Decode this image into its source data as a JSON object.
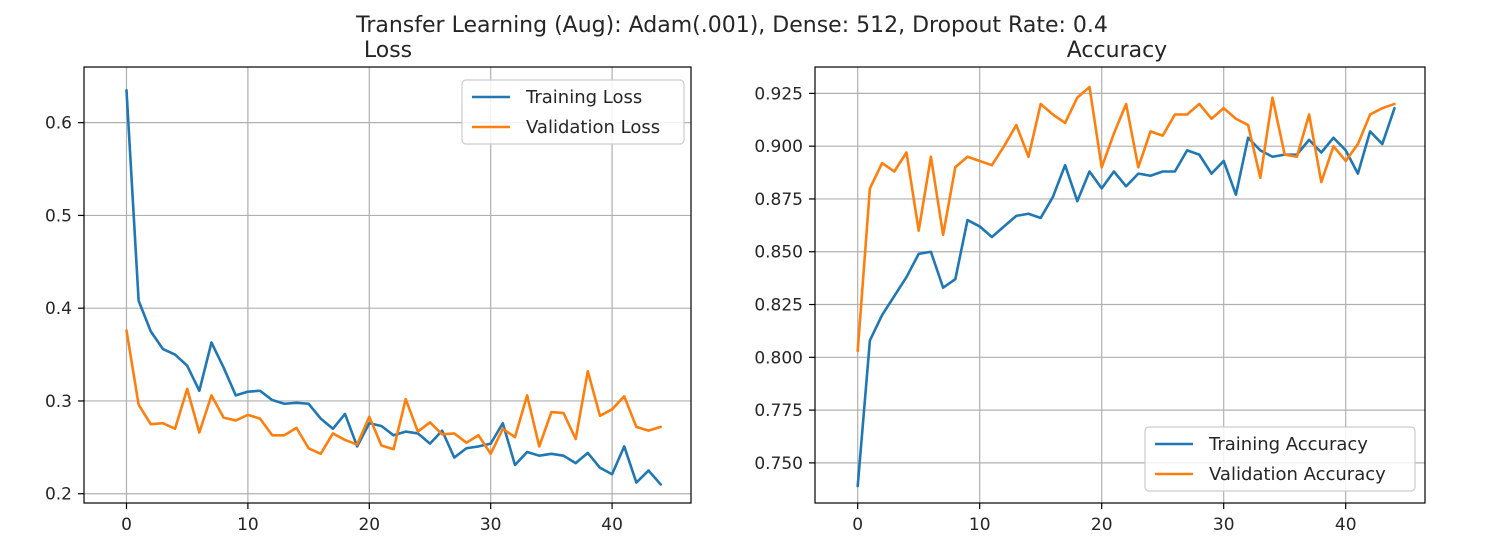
{
  "figure": {
    "suptitle": "Transfer Learning (Aug): Adam(.001), Dense: 512, Dropout Rate: 0.4"
  },
  "colors": {
    "training": "#1f77b4",
    "validation": "#ff7f0e",
    "grid": "#b0b0b0",
    "axes": "#000000",
    "tick_text": "#262626"
  },
  "chart_data": [
    {
      "type": "line",
      "title": "Loss",
      "xlabel": "",
      "ylabel": "",
      "xlim": [
        -3.5,
        46.5
      ],
      "ylim": [
        0.19,
        0.66
      ],
      "xticks": [
        0,
        10,
        20,
        30,
        40
      ],
      "yticks": [
        0.2,
        0.3,
        0.4,
        0.5,
        0.6
      ],
      "ytick_labels": [
        "0.2",
        "0.3",
        "0.4",
        "0.5",
        "0.6"
      ],
      "grid": true,
      "legend_position": "top-right",
      "x": [
        0,
        1,
        2,
        3,
        4,
        5,
        6,
        7,
        8,
        9,
        10,
        11,
        12,
        13,
        14,
        15,
        16,
        17,
        18,
        19,
        20,
        21,
        22,
        23,
        24,
        25,
        26,
        27,
        28,
        29,
        30,
        31,
        32,
        33,
        34,
        35,
        36,
        37,
        38,
        39,
        40,
        41,
        42,
        43,
        44
      ],
      "series": [
        {
          "name": "Training Loss",
          "color": "training",
          "values": [
            0.635,
            0.408,
            0.375,
            0.356,
            0.35,
            0.338,
            0.311,
            0.363,
            0.336,
            0.306,
            0.31,
            0.311,
            0.301,
            0.297,
            0.298,
            0.297,
            0.281,
            0.27,
            0.286,
            0.251,
            0.276,
            0.273,
            0.263,
            0.267,
            0.265,
            0.254,
            0.268,
            0.239,
            0.249,
            0.251,
            0.254,
            0.276,
            0.231,
            0.245,
            0.241,
            0.243,
            0.241,
            0.233,
            0.244,
            0.228,
            0.221,
            0.251,
            0.212,
            0.225,
            0.21
          ]
        },
        {
          "name": "Validation Loss",
          "color": "validation",
          "values": [
            0.376,
            0.296,
            0.275,
            0.276,
            0.27,
            0.313,
            0.266,
            0.306,
            0.282,
            0.279,
            0.285,
            0.281,
            0.263,
            0.263,
            0.271,
            0.249,
            0.243,
            0.265,
            0.258,
            0.253,
            0.283,
            0.252,
            0.248,
            0.302,
            0.267,
            0.277,
            0.264,
            0.265,
            0.255,
            0.263,
            0.243,
            0.27,
            0.261,
            0.306,
            0.251,
            0.288,
            0.287,
            0.259,
            0.332,
            0.284,
            0.291,
            0.305,
            0.272,
            0.268,
            0.272
          ]
        }
      ]
    },
    {
      "type": "line",
      "title": "Accuracy",
      "xlabel": "",
      "ylabel": "",
      "xlim": [
        -3.5,
        46.5
      ],
      "ylim": [
        0.731,
        0.9375
      ],
      "xticks": [
        0,
        10,
        20,
        30,
        40
      ],
      "yticks": [
        0.75,
        0.775,
        0.8,
        0.825,
        0.85,
        0.875,
        0.9,
        0.925
      ],
      "ytick_labels": [
        "0.750",
        "0.775",
        "0.800",
        "0.825",
        "0.850",
        "0.875",
        "0.900",
        "0.925"
      ],
      "grid": true,
      "legend_position": "bottom-right",
      "x": [
        0,
        1,
        2,
        3,
        4,
        5,
        6,
        7,
        8,
        9,
        10,
        11,
        12,
        13,
        14,
        15,
        16,
        17,
        18,
        19,
        20,
        21,
        22,
        23,
        24,
        25,
        26,
        27,
        28,
        29,
        30,
        31,
        32,
        33,
        34,
        35,
        36,
        37,
        38,
        39,
        40,
        41,
        42,
        43,
        44
      ],
      "series": [
        {
          "name": "Training Accuracy",
          "color": "training",
          "values": [
            0.739,
            0.808,
            0.82,
            0.829,
            0.838,
            0.849,
            0.85,
            0.833,
            0.837,
            0.865,
            0.862,
            0.857,
            0.862,
            0.867,
            0.868,
            0.866,
            0.876,
            0.891,
            0.874,
            0.888,
            0.88,
            0.888,
            0.881,
            0.887,
            0.886,
            0.888,
            0.888,
            0.898,
            0.896,
            0.887,
            0.893,
            0.877,
            0.904,
            0.898,
            0.895,
            0.896,
            0.896,
            0.903,
            0.897,
            0.904,
            0.898,
            0.887,
            0.907,
            0.901,
            0.918
          ]
        },
        {
          "name": "Validation Accuracy",
          "color": "validation",
          "values": [
            0.803,
            0.88,
            0.892,
            0.888,
            0.897,
            0.86,
            0.895,
            0.858,
            0.89,
            0.895,
            0.893,
            0.891,
            0.9,
            0.91,
            0.895,
            0.92,
            0.915,
            0.911,
            0.923,
            0.928,
            0.89,
            0.906,
            0.92,
            0.89,
            0.907,
            0.905,
            0.915,
            0.915,
            0.92,
            0.913,
            0.918,
            0.913,
            0.91,
            0.885,
            0.923,
            0.896,
            0.895,
            0.915,
            0.883,
            0.9,
            0.893,
            0.901,
            0.915,
            0.918,
            0.92
          ]
        }
      ]
    }
  ]
}
